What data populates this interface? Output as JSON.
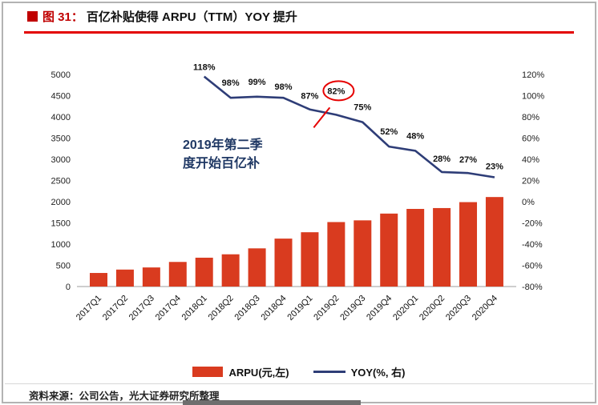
{
  "figure": {
    "tag": "图 31："
  },
  "chart_data": {
    "type": "bar",
    "subtype": "bar+line combo",
    "title": "百亿补贴使得 ARPU（TTM）YOY 提升",
    "categories": [
      "2017Q1",
      "2017Q2",
      "2017Q3",
      "2017Q4",
      "2018Q1",
      "2018Q2",
      "2018Q3",
      "2018Q4",
      "2019Q1",
      "2019Q2",
      "2019Q3",
      "2019Q4",
      "2020Q1",
      "2020Q2",
      "2020Q3",
      "2020Q4"
    ],
    "series": [
      {
        "name": "ARPU(元,左)",
        "type": "bar",
        "axis": "left",
        "color": "#d93b1f",
        "values": [
          320,
          400,
          450,
          580,
          680,
          760,
          900,
          1130,
          1280,
          1520,
          1560,
          1720,
          1830,
          1850,
          1990,
          2110
        ]
      },
      {
        "name": "YOY(%, 右)",
        "type": "line",
        "axis": "right",
        "color": "#2e3d77",
        "values": [
          null,
          null,
          null,
          null,
          118,
          98,
          99,
          98,
          87,
          82,
          75,
          52,
          48,
          28,
          27,
          23
        ],
        "point_labels": [
          "118%",
          "98%",
          "99%",
          "98%",
          "87%",
          "82%",
          "75%",
          "52%",
          "48%",
          "28%",
          "27%",
          "23%"
        ]
      }
    ],
    "left_axis": {
      "min": 0,
      "max": 5000,
      "step": 500,
      "ticks": [
        "0",
        "500",
        "1000",
        "1500",
        "2000",
        "2500",
        "3000",
        "3500",
        "4000",
        "4500",
        "5000"
      ]
    },
    "right_axis": {
      "min": -80,
      "max": 120,
      "step": 20,
      "ticks": [
        "-80%",
        "-60%",
        "-40%",
        "-20%",
        "0%",
        "20%",
        "40%",
        "60%",
        "80%",
        "100%",
        "120%"
      ]
    },
    "annotation": {
      "line1": "2019年第二季",
      "line2": "度开始百亿补"
    },
    "highlight": {
      "category": "2019Q2",
      "label": "82%"
    },
    "grid": false,
    "legend_position": "bottom"
  },
  "legend": [
    {
      "label": "ARPU(元,左)",
      "swatch": "bar",
      "color": "#d93b1f"
    },
    {
      "label": "YOY(%, 右)",
      "swatch": "line",
      "color": "#2e3d77"
    }
  ],
  "source": "资料来源：公司公告，光大证券研究所整理"
}
